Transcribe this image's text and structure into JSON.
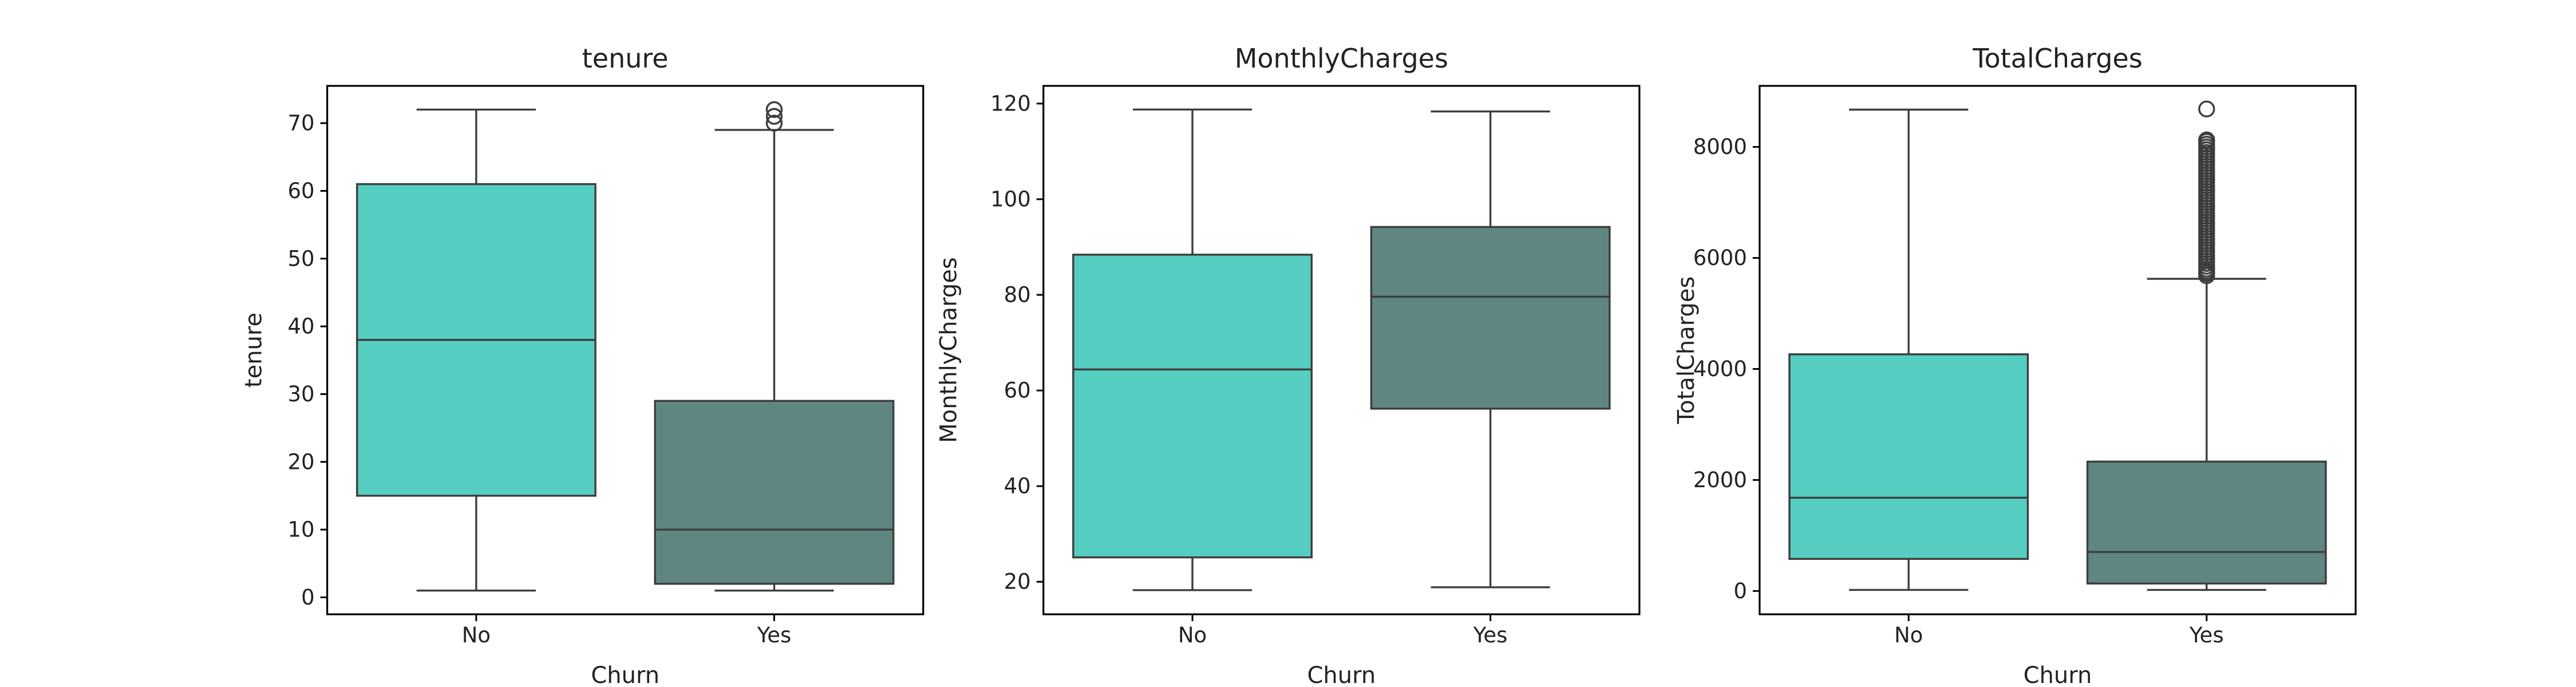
{
  "colors": {
    "No": "#56cdc1",
    "Yes": "#5f8681",
    "line": "#3d3d3d",
    "axes": "#000000"
  },
  "chart_data": [
    {
      "type": "boxplot",
      "title": "tenure",
      "xlabel": "Churn",
      "ylabel": "tenure",
      "categories": [
        "No",
        "Yes"
      ],
      "ylim": [
        -2.5,
        75.5
      ],
      "yticks": [
        0,
        10,
        20,
        30,
        40,
        50,
        60,
        70
      ],
      "ytick_labels": [
        "0",
        "10",
        "20",
        "30",
        "40",
        "50",
        "60",
        "70"
      ],
      "boxes": [
        {
          "category": "No",
          "whisker_low": 1,
          "q1": 15,
          "median": 38,
          "q3": 61,
          "whisker_high": 72,
          "outliers": []
        },
        {
          "category": "Yes",
          "whisker_low": 1,
          "q1": 2,
          "median": 10,
          "q3": 29,
          "whisker_high": 69,
          "outliers": [
            70,
            71,
            72
          ]
        }
      ]
    },
    {
      "type": "boxplot",
      "title": "MonthlyCharges",
      "xlabel": "Churn",
      "ylabel": "MonthlyCharges",
      "categories": [
        "No",
        "Yes"
      ],
      "ylim": [
        13.2,
        123.7
      ],
      "yticks": [
        20,
        40,
        60,
        80,
        100,
        120
      ],
      "ytick_labels": [
        "20",
        "40",
        "60",
        "80",
        "100",
        "120"
      ],
      "boxes": [
        {
          "category": "No",
          "whisker_low": 18.25,
          "q1": 25.1,
          "median": 64.4,
          "q3": 88.4,
          "whisker_high": 118.75,
          "outliers": []
        },
        {
          "category": "Yes",
          "whisker_low": 18.85,
          "q1": 56.2,
          "median": 79.6,
          "q3": 94.2,
          "whisker_high": 118.35,
          "outliers": []
        }
      ]
    },
    {
      "type": "boxplot",
      "title": "TotalCharges",
      "xlabel": "Churn",
      "ylabel": "TotalCharges",
      "categories": [
        "No",
        "Yes"
      ],
      "ylim": [
        -420,
        9100
      ],
      "yticks": [
        0,
        2000,
        4000,
        6000,
        8000
      ],
      "ytick_labels": [
        "0",
        "2000",
        "4000",
        "6000",
        "8000"
      ],
      "boxes": [
        {
          "category": "No",
          "whisker_low": 18.8,
          "q1": 578,
          "median": 1680,
          "q3": 4264,
          "whisker_high": 8672,
          "outliers": []
        },
        {
          "category": "Yes",
          "whisker_low": 18.85,
          "q1": 134.5,
          "median": 704,
          "q3": 2331,
          "whisker_high": 5624,
          "outliers": [
            5680,
            5720,
            5760,
            5800,
            5850,
            5900,
            5950,
            6000,
            6050,
            6100,
            6150,
            6200,
            6250,
            6300,
            6350,
            6400,
            6450,
            6500,
            6550,
            6600,
            6650,
            6700,
            6750,
            6800,
            6850,
            6900,
            6950,
            7000,
            7050,
            7100,
            7150,
            7200,
            7250,
            7300,
            7350,
            7400,
            7450,
            7500,
            7550,
            7600,
            7650,
            7700,
            7750,
            7800,
            7850,
            7900,
            7950,
            8000,
            8050,
            8100,
            8127,
            8684
          ]
        }
      ]
    }
  ]
}
